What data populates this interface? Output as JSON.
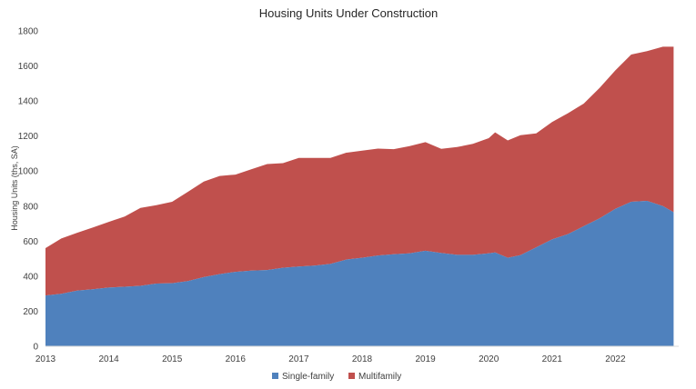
{
  "chart_data": {
    "type": "area",
    "stacked": true,
    "title": "Housing Units Under Construction",
    "xlabel": "",
    "ylabel": "Housing Units (ths, SA)",
    "ylim": [
      0,
      1800
    ],
    "xlim": [
      2013,
      2023
    ],
    "yticks": [
      0,
      200,
      400,
      600,
      800,
      1000,
      1200,
      1400,
      1600,
      1800
    ],
    "xticks": [
      2013,
      2014,
      2015,
      2016,
      2017,
      2018,
      2019,
      2020,
      2021,
      2022
    ],
    "grid": false,
    "legend": "bottom",
    "x": [
      2013.0,
      2013.25,
      2013.5,
      2013.75,
      2014.0,
      2014.25,
      2014.5,
      2014.75,
      2015.0,
      2015.25,
      2015.5,
      2015.75,
      2016.0,
      2016.25,
      2016.5,
      2016.75,
      2017.0,
      2017.25,
      2017.5,
      2017.75,
      2018.0,
      2018.25,
      2018.5,
      2018.75,
      2019.0,
      2019.25,
      2019.5,
      2019.75,
      2020.0,
      2020.1,
      2020.3,
      2020.5,
      2020.75,
      2021.0,
      2021.25,
      2021.5,
      2021.75,
      2022.0,
      2022.25,
      2022.5,
      2022.75,
      2022.92
    ],
    "series": [
      {
        "name": "Single-family",
        "color": "#4F81BD",
        "values": [
          290,
          300,
          318,
          325,
          335,
          340,
          345,
          358,
          360,
          372,
          395,
          412,
          425,
          432,
          435,
          448,
          455,
          460,
          470,
          495,
          505,
          518,
          525,
          530,
          545,
          532,
          522,
          522,
          530,
          536,
          505,
          520,
          565,
          610,
          640,
          685,
          730,
          785,
          825,
          830,
          800,
          765
        ]
      },
      {
        "name": "Multifamily",
        "color": "#C0504D",
        "values": [
          270,
          315,
          330,
          353,
          375,
          400,
          445,
          447,
          465,
          510,
          545,
          560,
          555,
          578,
          605,
          597,
          620,
          615,
          605,
          610,
          612,
          610,
          600,
          612,
          620,
          595,
          615,
          633,
          658,
          685,
          670,
          685,
          650,
          670,
          690,
          700,
          745,
          790,
          840,
          855,
          910,
          945
        ]
      }
    ]
  }
}
